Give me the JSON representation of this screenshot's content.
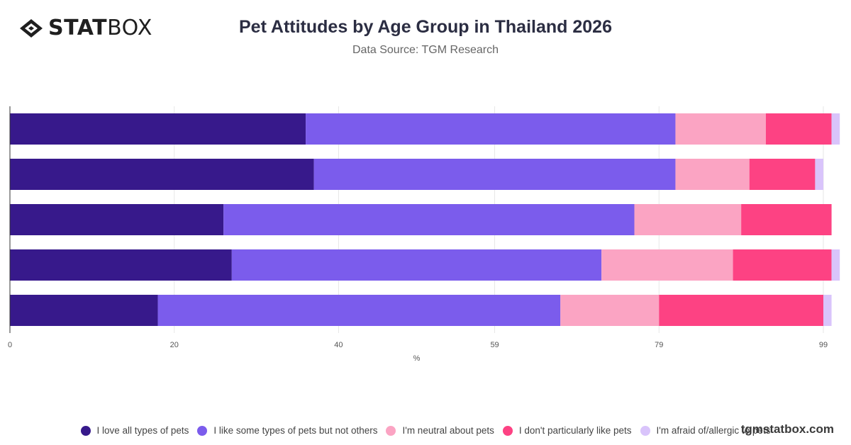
{
  "brand": {
    "logo_bold": "STAT",
    "logo_light": "BOX",
    "watermark": "tgmstatbox.com"
  },
  "header": {
    "title": "Pet Attitudes by Age Group in Thailand 2026",
    "subtitle": "Data Source: TGM Research"
  },
  "chart_data": {
    "type": "bar",
    "orientation": "horizontal",
    "stacked": true,
    "title": "Pet Attitudes by Age Group in Thailand 2026",
    "subtitle": "Data Source: TGM Research",
    "xlabel": "%",
    "ylabel": "",
    "xlim": [
      0,
      99
    ],
    "x_ticks": [
      0,
      20,
      40,
      59,
      79,
      99
    ],
    "grid": "vertical",
    "legend_position": "bottom",
    "categories": [
      "",
      "",
      "",
      "",
      ""
    ],
    "series": [
      {
        "name": "I love all types of pets",
        "color": "#37198b",
        "values": [
          36,
          37,
          26,
          27,
          18
        ]
      },
      {
        "name": "I like some types of pets but not others",
        "color": "#7b5cec",
        "values": [
          45,
          44,
          50,
          45,
          49
        ]
      },
      {
        "name": "I'm neutral about pets",
        "color": "#fba4c3",
        "values": [
          11,
          9,
          13,
          16,
          12
        ]
      },
      {
        "name": "I don't particularly like pets",
        "color": "#fd4283",
        "values": [
          8,
          8,
          11,
          12,
          20
        ]
      },
      {
        "name": "I'm afraid of/allergic to pets",
        "color": "#d9c4fb",
        "values": [
          1,
          1,
          0,
          1,
          1
        ]
      }
    ]
  }
}
